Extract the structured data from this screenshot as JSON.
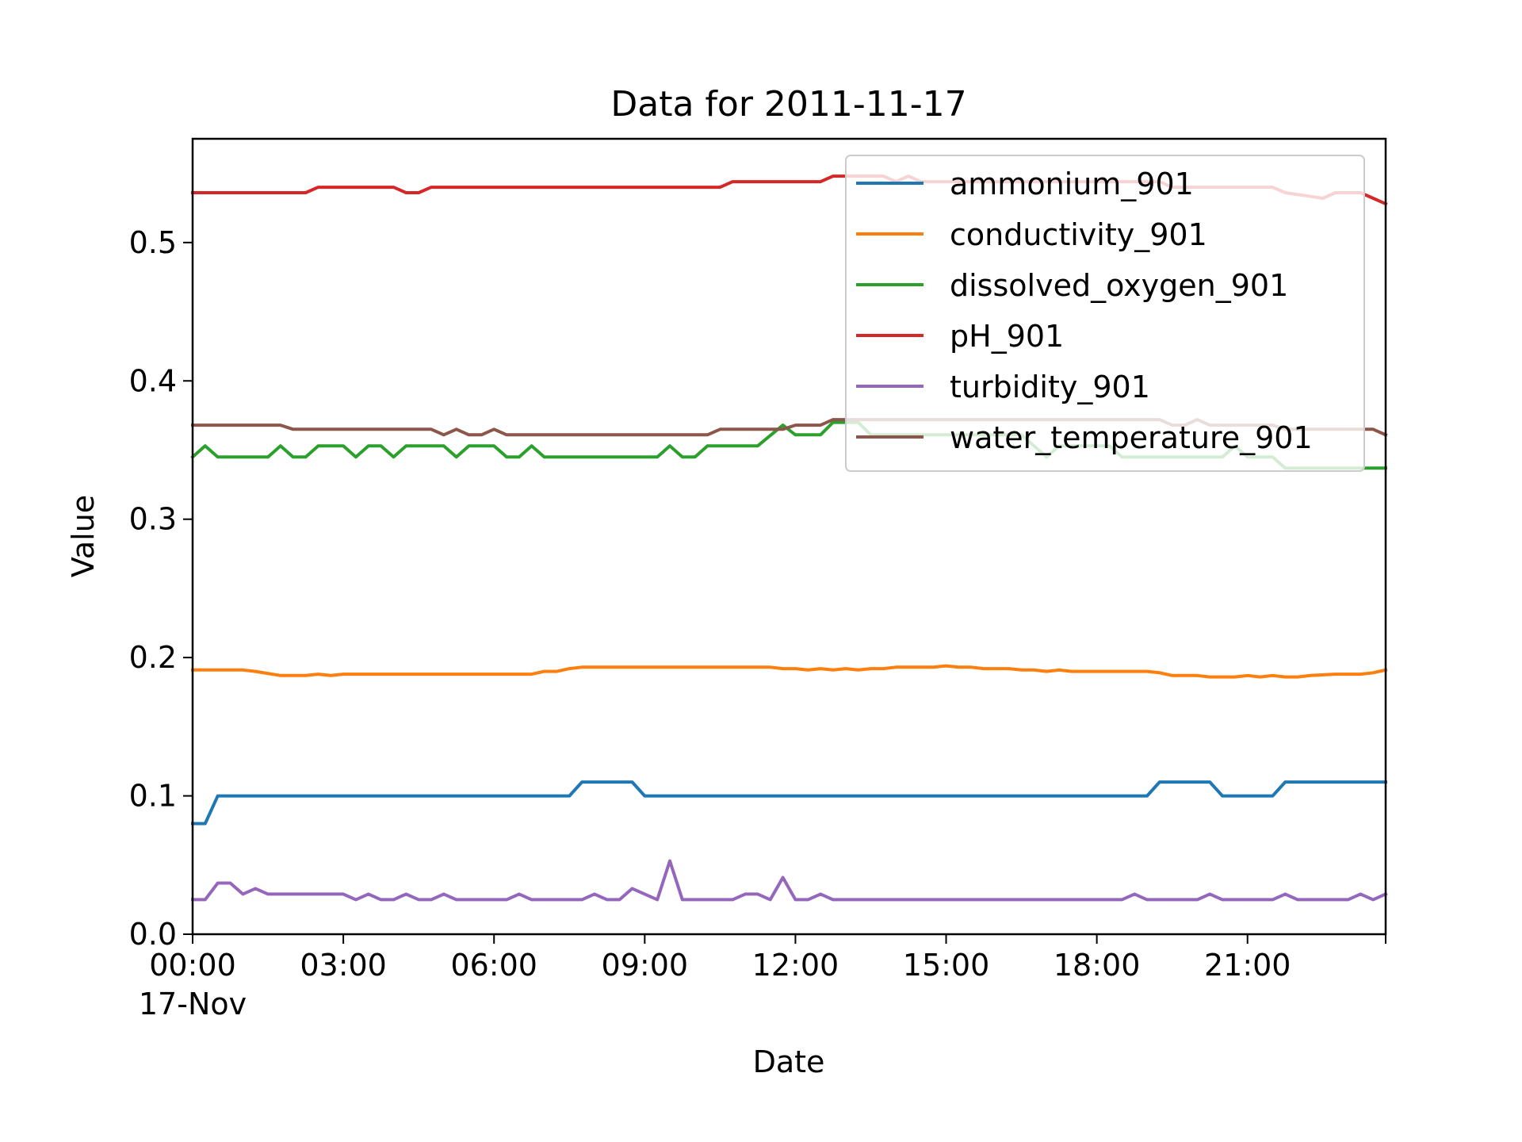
{
  "chart_data": {
    "type": "line",
    "title": "Data for 2011-11-17",
    "xlabel": "Date",
    "ylabel": "Value",
    "date": "2011-11-17",
    "x_range": [
      "2011-11-17 00:00",
      "2011-11-17 23:45"
    ],
    "ylim": [
      0,
      0.575
    ],
    "grid": false,
    "legend_position": "top-right",
    "x_ticks": [
      {
        "time": "00:00",
        "label": "00:00",
        "sublabel": "17-Nov"
      },
      {
        "time": "03:00",
        "label": "03:00"
      },
      {
        "time": "06:00",
        "label": "06:00"
      },
      {
        "time": "09:00",
        "label": "09:00"
      },
      {
        "time": "12:00",
        "label": "12:00"
      },
      {
        "time": "15:00",
        "label": "15:00"
      },
      {
        "time": "18:00",
        "label": "18:00"
      },
      {
        "time": "21:00",
        "label": "21:00"
      }
    ],
    "y_ticks": [
      {
        "value": 0.0,
        "label": "0.0"
      },
      {
        "value": 0.1,
        "label": "0.1"
      },
      {
        "value": 0.2,
        "label": "0.2"
      },
      {
        "value": 0.3,
        "label": "0.3"
      },
      {
        "value": 0.4,
        "label": "0.4"
      },
      {
        "value": 0.5,
        "label": "0.5"
      }
    ],
    "series": [
      {
        "name": "ammonium_901",
        "color": "#1f77b4",
        "points": [
          [
            "00:00",
            0.08
          ],
          [
            "00:15",
            0.08
          ],
          [
            "00:30",
            0.1
          ],
          [
            "07:30",
            0.1
          ],
          [
            "07:45",
            0.11
          ],
          [
            "08:45",
            0.11
          ],
          [
            "09:00",
            0.1
          ],
          [
            "19:00",
            0.1
          ],
          [
            "19:15",
            0.11
          ],
          [
            "20:15",
            0.11
          ],
          [
            "20:30",
            0.1
          ],
          [
            "21:30",
            0.1
          ],
          [
            "21:45",
            0.11
          ],
          [
            "23:45",
            0.11
          ]
        ]
      },
      {
        "name": "conductivity_901",
        "color": "#ff7f0e",
        "points": [
          [
            "00:00",
            0.191
          ],
          [
            "01:00",
            0.191
          ],
          [
            "01:15",
            0.19
          ],
          [
            "01:45",
            0.187
          ],
          [
            "02:15",
            0.187
          ],
          [
            "02:30",
            0.188
          ],
          [
            "02:45",
            0.187
          ],
          [
            "03:00",
            0.188
          ],
          [
            "06:45",
            0.188
          ],
          [
            "07:00",
            0.19
          ],
          [
            "07:15",
            0.19
          ],
          [
            "07:30",
            0.192
          ],
          [
            "07:45",
            0.193
          ],
          [
            "11:30",
            0.193
          ],
          [
            "11:45",
            0.192
          ],
          [
            "12:00",
            0.192
          ],
          [
            "12:15",
            0.191
          ],
          [
            "12:30",
            0.192
          ],
          [
            "12:45",
            0.191
          ],
          [
            "13:00",
            0.192
          ],
          [
            "13:15",
            0.191
          ],
          [
            "13:30",
            0.192
          ],
          [
            "13:45",
            0.192
          ],
          [
            "14:00",
            0.193
          ],
          [
            "14:45",
            0.193
          ],
          [
            "15:00",
            0.194
          ],
          [
            "15:15",
            0.193
          ],
          [
            "15:30",
            0.193
          ],
          [
            "15:45",
            0.192
          ],
          [
            "16:15",
            0.192
          ],
          [
            "16:30",
            0.191
          ],
          [
            "16:45",
            0.191
          ],
          [
            "17:00",
            0.19
          ],
          [
            "17:15",
            0.191
          ],
          [
            "17:30",
            0.19
          ],
          [
            "19:00",
            0.19
          ],
          [
            "19:15",
            0.189
          ],
          [
            "19:30",
            0.187
          ],
          [
            "20:00",
            0.187
          ],
          [
            "20:15",
            0.186
          ],
          [
            "20:45",
            0.186
          ],
          [
            "21:00",
            0.187
          ],
          [
            "21:15",
            0.186
          ],
          [
            "21:30",
            0.187
          ],
          [
            "21:45",
            0.186
          ],
          [
            "22:00",
            0.186
          ],
          [
            "22:15",
            0.187
          ],
          [
            "22:45",
            0.188
          ],
          [
            "23:15",
            0.188
          ],
          [
            "23:30",
            0.189
          ],
          [
            "23:45",
            0.191
          ]
        ]
      },
      {
        "name": "dissolved_oxygen_901",
        "color": "#2ca02c",
        "points": [
          [
            "00:00",
            0.345
          ],
          [
            "00:15",
            0.353
          ],
          [
            "00:30",
            0.345
          ],
          [
            "01:30",
            0.345
          ],
          [
            "01:45",
            0.353
          ],
          [
            "02:00",
            0.345
          ],
          [
            "02:15",
            0.345
          ],
          [
            "02:30",
            0.353
          ],
          [
            "03:00",
            0.353
          ],
          [
            "03:15",
            0.345
          ],
          [
            "03:30",
            0.353
          ],
          [
            "03:45",
            0.353
          ],
          [
            "04:00",
            0.345
          ],
          [
            "04:15",
            0.353
          ],
          [
            "05:00",
            0.353
          ],
          [
            "05:15",
            0.345
          ],
          [
            "05:30",
            0.353
          ],
          [
            "06:00",
            0.353
          ],
          [
            "06:15",
            0.345
          ],
          [
            "06:30",
            0.345
          ],
          [
            "06:45",
            0.353
          ],
          [
            "07:00",
            0.345
          ],
          [
            "09:15",
            0.345
          ],
          [
            "09:30",
            0.353
          ],
          [
            "09:45",
            0.345
          ],
          [
            "10:00",
            0.345
          ],
          [
            "10:15",
            0.353
          ],
          [
            "11:15",
            0.353
          ],
          [
            "11:45",
            0.368
          ],
          [
            "12:00",
            0.361
          ],
          [
            "12:30",
            0.361
          ],
          [
            "12:45",
            0.37
          ],
          [
            "13:15",
            0.37
          ],
          [
            "13:30",
            0.361
          ],
          [
            "16:30",
            0.361
          ],
          [
            "16:45",
            0.353
          ],
          [
            "17:00",
            0.345
          ],
          [
            "17:15",
            0.353
          ],
          [
            "18:15",
            0.353
          ],
          [
            "18:30",
            0.345
          ],
          [
            "20:30",
            0.345
          ],
          [
            "20:45",
            0.353
          ],
          [
            "21:00",
            0.345
          ],
          [
            "21:30",
            0.345
          ],
          [
            "21:45",
            0.337
          ],
          [
            "23:45",
            0.337
          ]
        ]
      },
      {
        "name": "pH_901",
        "color": "#d62728",
        "points": [
          [
            "00:00",
            0.536
          ],
          [
            "02:15",
            0.536
          ],
          [
            "02:30",
            0.54
          ],
          [
            "04:00",
            0.54
          ],
          [
            "04:15",
            0.536
          ],
          [
            "04:30",
            0.536
          ],
          [
            "04:45",
            0.54
          ],
          [
            "10:30",
            0.54
          ],
          [
            "10:45",
            0.544
          ],
          [
            "12:30",
            0.544
          ],
          [
            "12:45",
            0.548
          ],
          [
            "13:45",
            0.548
          ],
          [
            "14:00",
            0.544
          ],
          [
            "14:15",
            0.548
          ],
          [
            "14:30",
            0.544
          ],
          [
            "19:15",
            0.544
          ],
          [
            "19:30",
            0.54
          ],
          [
            "21:30",
            0.54
          ],
          [
            "21:45",
            0.536
          ],
          [
            "22:30",
            0.532
          ],
          [
            "22:45",
            0.536
          ],
          [
            "23:15",
            0.536
          ],
          [
            "23:30",
            0.532
          ],
          [
            "23:45",
            0.528
          ]
        ]
      },
      {
        "name": "turbidity_901",
        "color": "#9467bd",
        "points": [
          [
            "00:00",
            0.025
          ],
          [
            "00:15",
            0.025
          ],
          [
            "00:30",
            0.037
          ],
          [
            "00:45",
            0.037
          ],
          [
            "01:00",
            0.029
          ],
          [
            "01:15",
            0.033
          ],
          [
            "01:30",
            0.029
          ],
          [
            "03:00",
            0.029
          ],
          [
            "03:15",
            0.025
          ],
          [
            "03:30",
            0.029
          ],
          [
            "03:45",
            0.025
          ],
          [
            "04:00",
            0.025
          ],
          [
            "04:15",
            0.029
          ],
          [
            "04:30",
            0.025
          ],
          [
            "04:45",
            0.025
          ],
          [
            "05:00",
            0.029
          ],
          [
            "05:15",
            0.025
          ],
          [
            "06:15",
            0.025
          ],
          [
            "06:30",
            0.029
          ],
          [
            "06:45",
            0.025
          ],
          [
            "07:45",
            0.025
          ],
          [
            "08:00",
            0.029
          ],
          [
            "08:15",
            0.025
          ],
          [
            "08:30",
            0.025
          ],
          [
            "08:45",
            0.033
          ],
          [
            "09:00",
            0.029
          ],
          [
            "09:15",
            0.025
          ],
          [
            "09:30",
            0.053
          ],
          [
            "09:45",
            0.025
          ],
          [
            "10:45",
            0.025
          ],
          [
            "11:00",
            0.029
          ],
          [
            "11:15",
            0.029
          ],
          [
            "11:30",
            0.025
          ],
          [
            "11:45",
            0.041
          ],
          [
            "12:00",
            0.025
          ],
          [
            "12:15",
            0.025
          ],
          [
            "12:30",
            0.029
          ],
          [
            "12:45",
            0.025
          ],
          [
            "18:30",
            0.025
          ],
          [
            "18:45",
            0.029
          ],
          [
            "19:00",
            0.025
          ],
          [
            "20:00",
            0.025
          ],
          [
            "20:15",
            0.029
          ],
          [
            "20:30",
            0.025
          ],
          [
            "21:30",
            0.025
          ],
          [
            "21:45",
            0.029
          ],
          [
            "22:00",
            0.025
          ],
          [
            "23:00",
            0.025
          ],
          [
            "23:15",
            0.029
          ],
          [
            "23:30",
            0.025
          ],
          [
            "23:45",
            0.029
          ]
        ]
      },
      {
        "name": "water_temperature_901",
        "color": "#8c564b",
        "points": [
          [
            "00:00",
            0.368
          ],
          [
            "01:45",
            0.368
          ],
          [
            "02:00",
            0.365
          ],
          [
            "04:45",
            0.365
          ],
          [
            "05:00",
            0.361
          ],
          [
            "05:15",
            0.365
          ],
          [
            "05:30",
            0.361
          ],
          [
            "05:45",
            0.361
          ],
          [
            "06:00",
            0.365
          ],
          [
            "06:15",
            0.361
          ],
          [
            "10:15",
            0.361
          ],
          [
            "10:30",
            0.365
          ],
          [
            "11:45",
            0.365
          ],
          [
            "12:00",
            0.368
          ],
          [
            "12:30",
            0.368
          ],
          [
            "12:45",
            0.372
          ],
          [
            "13:00",
            0.372
          ],
          [
            "19:15",
            0.372
          ],
          [
            "19:30",
            0.368
          ],
          [
            "19:45",
            0.368
          ],
          [
            "20:00",
            0.372
          ],
          [
            "20:15",
            0.368
          ],
          [
            "21:30",
            0.368
          ],
          [
            "21:45",
            0.365
          ],
          [
            "23:30",
            0.365
          ],
          [
            "23:45",
            0.361
          ]
        ]
      }
    ]
  }
}
